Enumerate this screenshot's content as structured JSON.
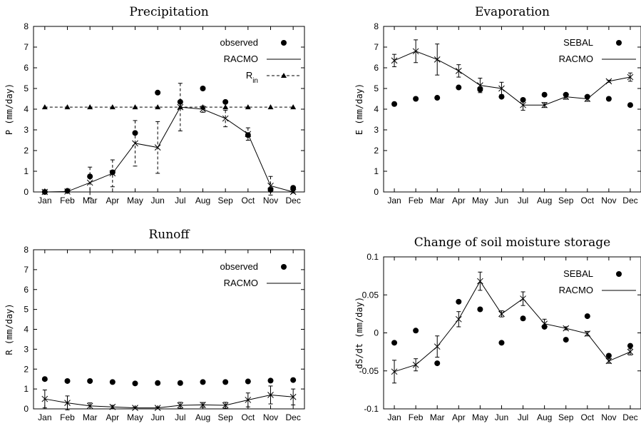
{
  "chart_data": [
    {
      "type": "line",
      "title": "Precipitation",
      "ylabel": "P  (mm/day)",
      "ylim": [
        0,
        8
      ],
      "yticks": [
        0,
        1,
        2,
        3,
        4,
        5,
        6,
        7,
        8
      ],
      "categories": [
        "Jan",
        "Feb",
        "Mar",
        "Apr",
        "May",
        "Jun",
        "Jul",
        "Aug",
        "Sep",
        "Oct",
        "Nov",
        "Dec"
      ],
      "legend": "top-right",
      "series": [
        {
          "name": "observed",
          "style": "dots",
          "values": [
            0.0,
            0.05,
            0.75,
            0.95,
            2.85,
            4.8,
            4.35,
            5.0,
            4.35,
            2.75,
            0.1,
            0.2
          ]
        },
        {
          "name": "RACMO",
          "style": "line-x",
          "error_style": "dashed",
          "values": [
            0.0,
            0.02,
            0.45,
            0.9,
            2.35,
            2.15,
            4.1,
            4.0,
            3.55,
            2.8,
            0.3,
            0.0
          ],
          "err": [
            0.03,
            0.05,
            0.75,
            0.65,
            1.1,
            1.25,
            1.15,
            0.15,
            0.4,
            0.3,
            0.45,
            0.05
          ]
        },
        {
          "name": "R",
          "name_sub": "in",
          "style": "dashed-triangle",
          "values": [
            4.1,
            4.1,
            4.1,
            4.1,
            4.1,
            4.1,
            4.1,
            4.1,
            4.1,
            4.1,
            4.1,
            4.1
          ]
        }
      ]
    },
    {
      "type": "line",
      "title": "Evaporation",
      "ylabel": "E  (mm/day)",
      "ylim": [
        0,
        8
      ],
      "yticks": [
        0,
        1,
        2,
        3,
        4,
        5,
        6,
        7,
        8
      ],
      "categories": [
        "Jan",
        "Feb",
        "Mar",
        "Apr",
        "May",
        "Jun",
        "Jul",
        "Aug",
        "Sep",
        "Oct",
        "Nov",
        "Dec"
      ],
      "legend": "top-right",
      "series": [
        {
          "name": "SEBAL",
          "style": "dots",
          "values": [
            4.25,
            4.5,
            4.55,
            5.05,
            4.95,
            4.6,
            4.45,
            4.7,
            4.7,
            4.6,
            4.5,
            4.2
          ]
        },
        {
          "name": "RACMO",
          "style": "line-x",
          "error_style": "solid",
          "values": [
            6.35,
            6.8,
            6.4,
            5.85,
            5.15,
            5.0,
            4.2,
            4.2,
            4.6,
            4.5,
            5.35,
            5.55
          ]
        },
        {
          "name": "",
          "style": "errors-only",
          "values": [
            6.35,
            6.8,
            6.4,
            5.85,
            5.15,
            5.0,
            4.2,
            4.2,
            4.6,
            4.5,
            5.35,
            5.55
          ],
          "err": [
            0.3,
            0.55,
            0.75,
            0.3,
            0.35,
            0.3,
            0.25,
            0.12,
            0.12,
            0.12,
            0.05,
            0.2
          ]
        }
      ]
    },
    {
      "type": "line",
      "title": "Runoff",
      "ylabel": "R  (mm/day)",
      "ylim": [
        0,
        8
      ],
      "yticks": [
        0,
        1,
        2,
        3,
        4,
        5,
        6,
        7,
        8
      ],
      "categories": [
        "Jan",
        "Feb",
        "Mar",
        "Apr",
        "May",
        "Jun",
        "Jul",
        "Aug",
        "Sep",
        "Oct",
        "Nov",
        "Dec"
      ],
      "legend": "top-right",
      "series": [
        {
          "name": "observed",
          "style": "dots",
          "values": [
            1.5,
            1.4,
            1.4,
            1.35,
            1.28,
            1.3,
            1.3,
            1.35,
            1.35,
            1.38,
            1.42,
            1.45
          ]
        },
        {
          "name": "RACMO",
          "style": "line-x",
          "error_style": "solid",
          "values": [
            0.5,
            0.3,
            0.15,
            0.1,
            0.05,
            0.05,
            0.18,
            0.2,
            0.18,
            0.45,
            0.7,
            0.6
          ]
        },
        {
          "name": "",
          "style": "errors-only",
          "values": [
            0.5,
            0.3,
            0.15,
            0.1,
            0.05,
            0.05,
            0.18,
            0.2,
            0.18,
            0.45,
            0.7,
            0.6
          ],
          "err": [
            0.45,
            0.35,
            0.15,
            0.08,
            0.05,
            0.05,
            0.15,
            0.12,
            0.15,
            0.35,
            0.45,
            0.4
          ]
        }
      ]
    },
    {
      "type": "line",
      "title": "Change of soil moisture storage",
      "ylabel": "dS/dt  (mm/day)",
      "ylim": [
        -0.1,
        0.1
      ],
      "yticks": [
        -0.1,
        -0.05,
        0,
        0.05,
        0.1
      ],
      "ytick_labels": [
        "-0.1",
        "-0.05",
        "0",
        "0.05",
        "0.1"
      ],
      "categories": [
        "Jan",
        "Feb",
        "Mar",
        "Apr",
        "May",
        "Jun",
        "Jul",
        "Aug",
        "Sep",
        "Oct",
        "Nov",
        "Dec"
      ],
      "legend": "top-right",
      "series": [
        {
          "name": "SEBAL",
          "style": "dots",
          "values": [
            -0.013,
            0.003,
            -0.04,
            0.041,
            0.031,
            -0.013,
            0.019,
            0.008,
            -0.009,
            0.022,
            -0.03,
            -0.017
          ]
        },
        {
          "name": "RACMO",
          "style": "line-x",
          "error_style": "solid",
          "values": [
            -0.051,
            -0.042,
            -0.018,
            0.018,
            0.068,
            0.025,
            0.045,
            0.012,
            0.006,
            -0.001,
            -0.037,
            -0.025
          ]
        },
        {
          "name": "",
          "style": "errors-only",
          "values": [
            -0.051,
            -0.042,
            -0.018,
            0.018,
            0.068,
            0.025,
            0.045,
            0.012,
            0.006,
            -0.001,
            -0.037,
            -0.025
          ],
          "err": [
            0.015,
            0.008,
            0.014,
            0.01,
            0.012,
            0.004,
            0.009,
            0.006,
            0.002,
            0.003,
            0.003,
            0.004
          ]
        }
      ]
    }
  ]
}
